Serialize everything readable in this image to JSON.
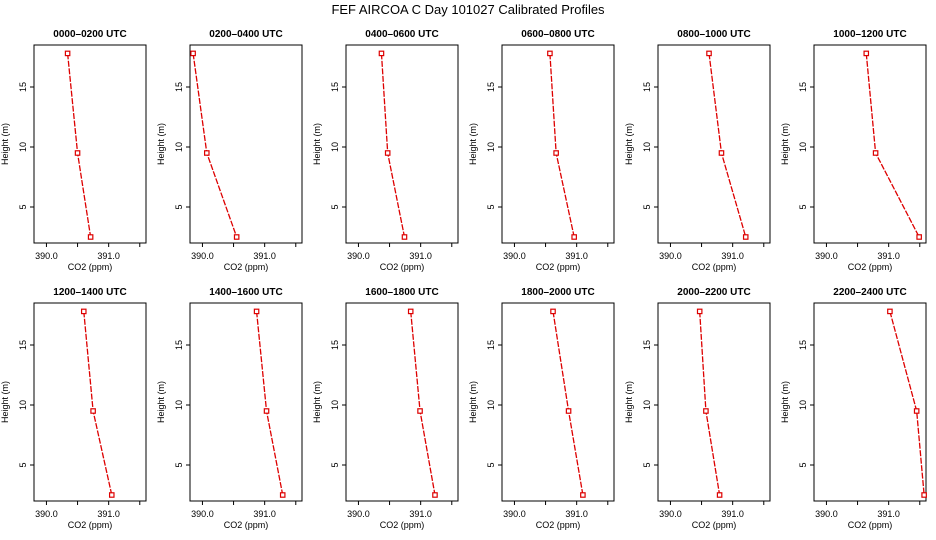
{
  "title": "FEF AIRCOA C  Day 101027  Calibrated Profiles",
  "chart_data": [
    {
      "type": "line",
      "title": "0000–0200 UTC",
      "xlabel": "CO2 (ppm)",
      "ylabel": "Height (m)",
      "xticks": [
        "390.0",
        "391.0"
      ],
      "yticks": [
        "5",
        "10",
        "15"
      ],
      "xlim": [
        389.8,
        391.6
      ],
      "ylim": [
        2,
        18.5
      ],
      "color": "#dd0000",
      "series": [
        {
          "x": [
            390.34,
            390.5,
            390.71
          ],
          "y": [
            17.8,
            9.5,
            2.5
          ]
        }
      ]
    },
    {
      "type": "line",
      "title": "0200–0400 UTC",
      "xlabel": "CO2 (ppm)",
      "ylabel": "Height (m)",
      "xticks": [
        "390.0",
        "391.0"
      ],
      "yticks": [
        "5",
        "10",
        "15"
      ],
      "xlim": [
        389.8,
        391.6
      ],
      "ylim": [
        2,
        18.5
      ],
      "color": "#dd0000",
      "series": [
        {
          "x": [
            389.85,
            390.07,
            390.55
          ],
          "y": [
            17.8,
            9.5,
            2.5
          ]
        }
      ]
    },
    {
      "type": "line",
      "title": "0400–0600 UTC",
      "xlabel": "CO2 (ppm)",
      "ylabel": "Height (m)",
      "xticks": [
        "390.0",
        "391.0"
      ],
      "yticks": [
        "5",
        "10",
        "15"
      ],
      "xlim": [
        389.8,
        391.6
      ],
      "ylim": [
        2,
        18.5
      ],
      "color": "#dd0000",
      "series": [
        {
          "x": [
            390.37,
            390.47,
            390.74
          ],
          "y": [
            17.8,
            9.5,
            2.5
          ]
        }
      ]
    },
    {
      "type": "line",
      "title": "0600–0800 UTC",
      "xlabel": "CO2 (ppm)",
      "ylabel": "Height (m)",
      "xticks": [
        "390.0",
        "391.0"
      ],
      "yticks": [
        "5",
        "10",
        "15"
      ],
      "xlim": [
        389.8,
        391.6
      ],
      "ylim": [
        2,
        18.5
      ],
      "color": "#dd0000",
      "series": [
        {
          "x": [
            390.57,
            390.67,
            390.96
          ],
          "y": [
            17.8,
            9.5,
            2.5
          ]
        }
      ]
    },
    {
      "type": "line",
      "title": "0800–1000 UTC",
      "xlabel": "CO2 (ppm)",
      "ylabel": "Height (m)",
      "xticks": [
        "390.0",
        "391.0"
      ],
      "yticks": [
        "5",
        "10",
        "15"
      ],
      "xlim": [
        389.8,
        391.6
      ],
      "ylim": [
        2,
        18.5
      ],
      "color": "#dd0000",
      "series": [
        {
          "x": [
            390.62,
            390.82,
            391.21
          ],
          "y": [
            17.8,
            9.5,
            2.5
          ]
        }
      ]
    },
    {
      "type": "line",
      "title": "1000–1200 UTC",
      "xlabel": "CO2 (ppm)",
      "ylabel": "Height (m)",
      "xticks": [
        "390.0",
        "391.0"
      ],
      "yticks": [
        "5",
        "10",
        "15"
      ],
      "xlim": [
        389.8,
        391.6
      ],
      "ylim": [
        2,
        18.5
      ],
      "color": "#dd0000",
      "series": [
        {
          "x": [
            390.64,
            390.79,
            391.49
          ],
          "y": [
            17.8,
            9.5,
            2.5
          ]
        }
      ]
    },
    {
      "type": "line",
      "title": "1200–1400 UTC",
      "xlabel": "CO2 (ppm)",
      "ylabel": "Height (m)",
      "xticks": [
        "390.0",
        "391.0"
      ],
      "yticks": [
        "5",
        "10",
        "15"
      ],
      "xlim": [
        389.8,
        391.6
      ],
      "ylim": [
        2,
        18.5
      ],
      "color": "#dd0000",
      "series": [
        {
          "x": [
            390.6,
            390.75,
            391.05
          ],
          "y": [
            17.8,
            9.5,
            2.5
          ]
        }
      ]
    },
    {
      "type": "line",
      "title": "1400–1600 UTC",
      "xlabel": "CO2 (ppm)",
      "ylabel": "Height (m)",
      "xticks": [
        "390.0",
        "391.0"
      ],
      "yticks": [
        "5",
        "10",
        "15"
      ],
      "xlim": [
        389.8,
        391.6
      ],
      "ylim": [
        2,
        18.5
      ],
      "color": "#dd0000",
      "series": [
        {
          "x": [
            390.87,
            391.03,
            391.29
          ],
          "y": [
            17.8,
            9.5,
            2.5
          ]
        }
      ]
    },
    {
      "type": "line",
      "title": "1600–1800 UTC",
      "xlabel": "CO2 (ppm)",
      "ylabel": "Height (m)",
      "xticks": [
        "390.0",
        "391.0"
      ],
      "yticks": [
        "5",
        "10",
        "15"
      ],
      "xlim": [
        389.8,
        391.6
      ],
      "ylim": [
        2,
        18.5
      ],
      "color": "#dd0000",
      "series": [
        {
          "x": [
            390.84,
            390.99,
            391.23
          ],
          "y": [
            17.8,
            9.5,
            2.5
          ]
        }
      ]
    },
    {
      "type": "line",
      "title": "1800–2000 UTC",
      "xlabel": "CO2 (ppm)",
      "ylabel": "Height (m)",
      "xticks": [
        "390.0",
        "391.0"
      ],
      "yticks": [
        "5",
        "10",
        "15"
      ],
      "xlim": [
        389.8,
        391.6
      ],
      "ylim": [
        2,
        18.5
      ],
      "color": "#dd0000",
      "series": [
        {
          "x": [
            390.62,
            390.87,
            391.1
          ],
          "y": [
            17.8,
            9.5,
            2.5
          ]
        }
      ]
    },
    {
      "type": "line",
      "title": "2000–2200 UTC",
      "xlabel": "CO2 (ppm)",
      "ylabel": "Height (m)",
      "xticks": [
        "390.0",
        "391.0"
      ],
      "yticks": [
        "5",
        "10",
        "15"
      ],
      "xlim": [
        389.8,
        391.6
      ],
      "ylim": [
        2,
        18.5
      ],
      "color": "#dd0000",
      "series": [
        {
          "x": [
            390.47,
            390.57,
            390.79
          ],
          "y": [
            17.8,
            9.5,
            2.5
          ]
        }
      ]
    },
    {
      "type": "line",
      "title": "2200–2400 UTC",
      "xlabel": "CO2 (ppm)",
      "ylabel": "Height (m)",
      "xticks": [
        "390.0",
        "391.0"
      ],
      "yticks": [
        "5",
        "10",
        "15"
      ],
      "xlim": [
        389.8,
        391.6
      ],
      "ylim": [
        2,
        18.5
      ],
      "color": "#dd0000",
      "series": [
        {
          "x": [
            391.02,
            391.45,
            391.57
          ],
          "y": [
            17.8,
            9.5,
            2.5
          ]
        }
      ]
    }
  ]
}
